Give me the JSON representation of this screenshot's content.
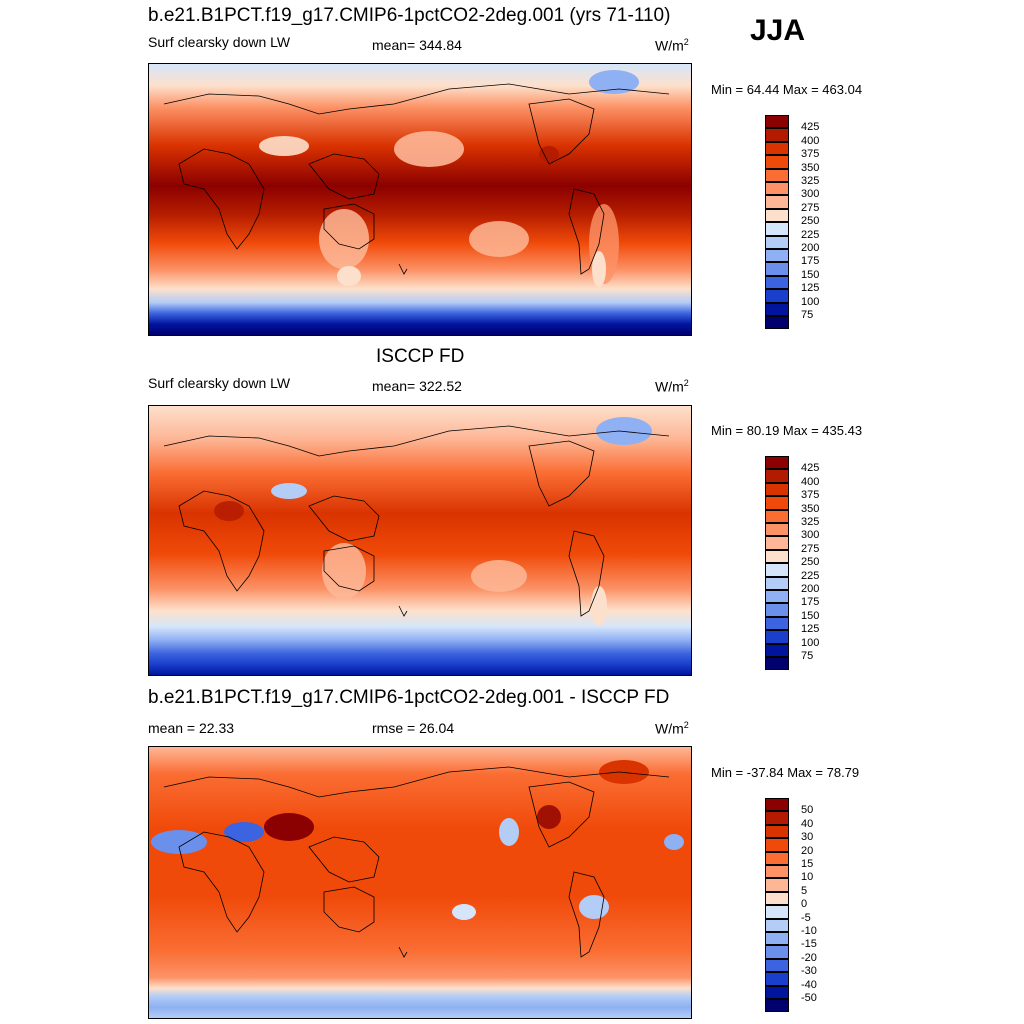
{
  "season": "JJA",
  "panels": [
    {
      "title": "b.e21.B1PCT.f19_g17.CMIP6-1pctCO2-2deg.001 (yrs 71-110)",
      "left_label": "Surf clearsky down LW",
      "mid_label": "mean= 344.84",
      "units_main": "W/m",
      "units_sup": "2",
      "minmax": "Min =  64.44 Max = 463.04",
      "levels": [
        "425",
        "400",
        "375",
        "350",
        "325",
        "300",
        "275",
        "250",
        "225",
        "200",
        "175",
        "150",
        "125",
        "100",
        "75"
      ],
      "colors": [
        "#8b0000",
        "#b31b00",
        "#d93300",
        "#f04a0a",
        "#fa6d33",
        "#fc9266",
        "#fdb797",
        "#fde0cb",
        "#d6e6fa",
        "#b3cdf7",
        "#8fb0f2",
        "#6b90ec",
        "#3d64e0",
        "#1a3fcc",
        "#00149e",
        "#00006e"
      ]
    },
    {
      "title": "ISCCP FD",
      "left_label": "Surf clearsky down LW",
      "mid_label": "mean= 322.52",
      "units_main": "W/m",
      "units_sup": "2",
      "minmax": "Min =  80.19 Max = 435.43",
      "levels": [
        "425",
        "400",
        "375",
        "350",
        "325",
        "300",
        "275",
        "250",
        "225",
        "200",
        "175",
        "150",
        "125",
        "100",
        "75"
      ],
      "colors": [
        "#8b0000",
        "#b31b00",
        "#d93300",
        "#f04a0a",
        "#fa6d33",
        "#fc9266",
        "#fdb797",
        "#fde0cb",
        "#d6e6fa",
        "#b3cdf7",
        "#8fb0f2",
        "#6b90ec",
        "#3d64e0",
        "#1a3fcc",
        "#00149e",
        "#00006e"
      ]
    },
    {
      "title": "b.e21.B1PCT.f19_g17.CMIP6-1pctCO2-2deg.001 - ISCCP FD",
      "left_label": "mean =  22.33",
      "mid_label": "rmse =  26.04",
      "units_main": "W/m",
      "units_sup": "2",
      "minmax": "Min = -37.84 Max =  78.79",
      "levels": [
        "50",
        "40",
        "30",
        "20",
        "15",
        "10",
        "5",
        "0",
        "-5",
        "-10",
        "-15",
        "-20",
        "-30",
        "-40",
        "-50"
      ],
      "colors": [
        "#8b0000",
        "#b31b00",
        "#d93300",
        "#f04a0a",
        "#fa6d33",
        "#fc9266",
        "#fdb797",
        "#fde0cb",
        "#d6e6fa",
        "#b3cdf7",
        "#8fb0f2",
        "#6b90ec",
        "#3d64e0",
        "#1a3fcc",
        "#00149e",
        "#00006e"
      ]
    }
  ]
}
